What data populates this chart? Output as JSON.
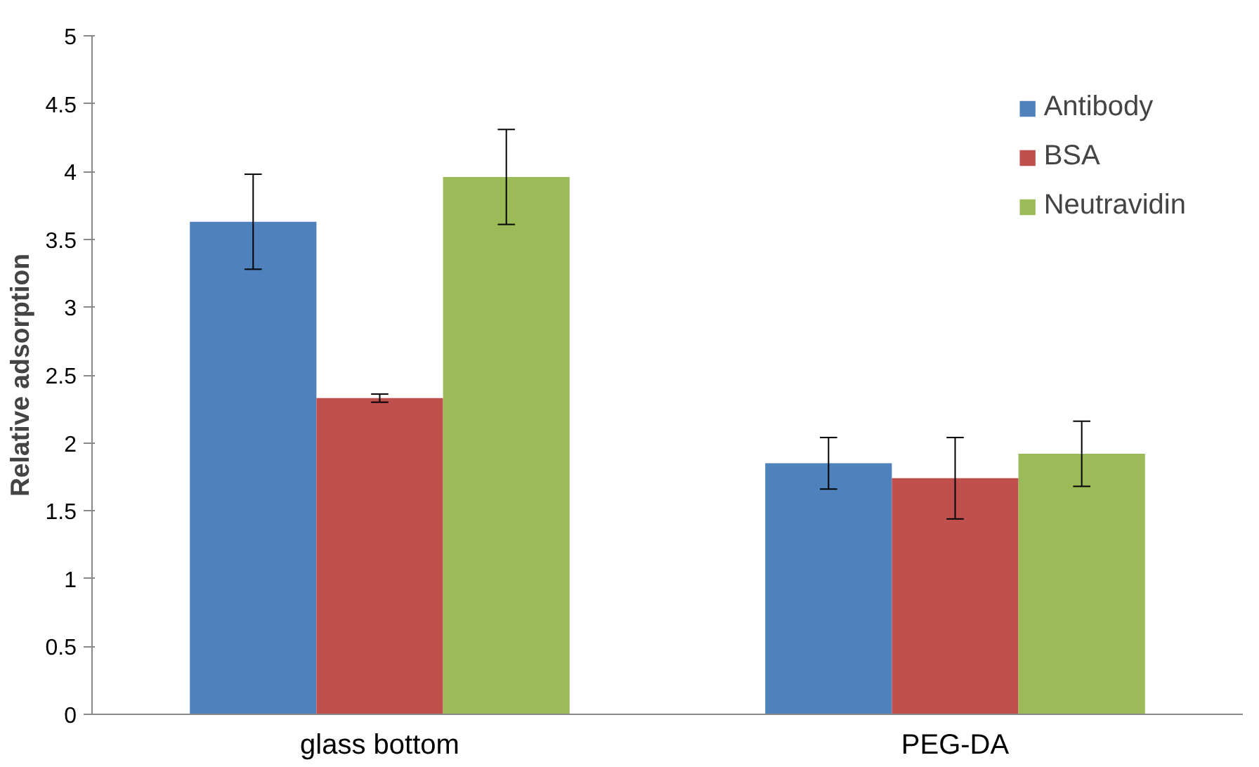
{
  "chart_data": {
    "type": "bar",
    "ylabel": "Relative adsorption",
    "categories": [
      "glass bottom",
      "PEG-DA"
    ],
    "series": [
      {
        "name": "Antibody",
        "color": "#4f81bd",
        "values": [
          3.63,
          1.85
        ],
        "errors": [
          0.35,
          0.19
        ]
      },
      {
        "name": "BSA",
        "color": "#c0504d",
        "values": [
          2.33,
          1.74
        ],
        "errors": [
          0.03,
          0.3
        ]
      },
      {
        "name": "Neutravidin",
        "color": "#9bbb59",
        "values": [
          3.96,
          1.92
        ],
        "errors": [
          0.35,
          0.24
        ]
      }
    ],
    "ylim": [
      0,
      5
    ],
    "yticks": [
      0,
      0.5,
      1,
      1.5,
      2,
      2.5,
      3,
      3.5,
      4,
      4.5,
      5
    ],
    "grid": false,
    "legend": "top right"
  }
}
